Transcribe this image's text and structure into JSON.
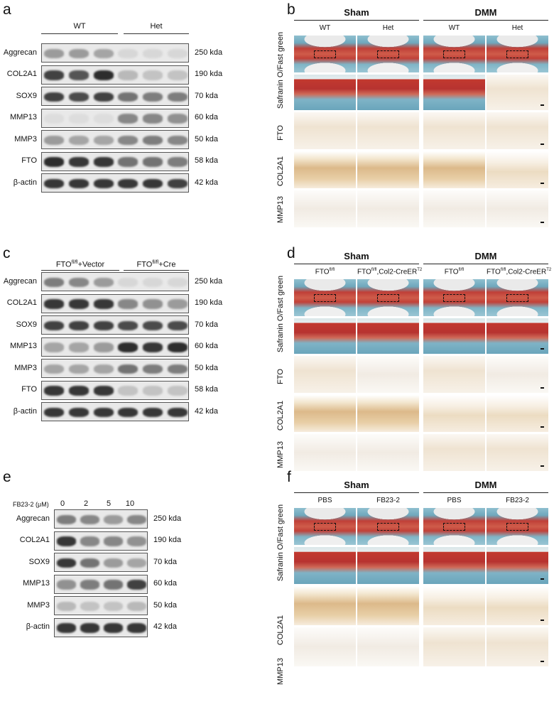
{
  "panels": {
    "a": {
      "label": "a",
      "groups": [
        "WT",
        "Het"
      ],
      "rows": [
        {
          "protein": "Aggrecan",
          "kda": "250 kda"
        },
        {
          "protein": "COL2A1",
          "kda": "190 kda"
        },
        {
          "protein": "SOX9",
          "kda": "70 kda"
        },
        {
          "protein": "MMP13",
          "kda": "60 kda"
        },
        {
          "protein": "MMP3",
          "kda": "50 kda"
        },
        {
          "protein": "FTO",
          "kda": "58 kda"
        },
        {
          "protein": "β-actin",
          "kda": "42 kda"
        }
      ]
    },
    "b": {
      "label": "b",
      "headers": [
        "Sham",
        "DMM"
      ],
      "columns": [
        "WT",
        "Het",
        "WT",
        "Het"
      ],
      "row_labels": [
        "Safranin O/Fast green",
        "FTO",
        "COL2A1",
        "MMP13"
      ]
    },
    "c": {
      "label": "c",
      "groups": [
        {
          "base": "FTO",
          "sup": "fl/fl",
          "rest": "+Vector"
        },
        {
          "base": "FTO",
          "sup": "fl/fl",
          "rest": "+Cre"
        }
      ],
      "rows": [
        {
          "protein": "Aggrecan",
          "kda": "250 kda"
        },
        {
          "protein": "COL2A1",
          "kda": "190 kda"
        },
        {
          "protein": "SOX9",
          "kda": "70 kda"
        },
        {
          "protein": "MMP13",
          "kda": "60 kda"
        },
        {
          "protein": "MMP3",
          "kda": "50 kda"
        },
        {
          "protein": "FTO",
          "kda": "58 kda"
        },
        {
          "protein": "β-actin",
          "kda": "42 kda"
        }
      ]
    },
    "d": {
      "label": "d",
      "headers": [
        "Sham",
        "DMM"
      ],
      "columns": [
        {
          "base": "FTO",
          "sup": "fl/fl",
          "rest": "",
          "sup2": ""
        },
        {
          "base": "FTO",
          "sup": "fl/fl",
          "rest": ",Col2-CreER",
          "sup2": "T2"
        },
        {
          "base": "FTO",
          "sup": "fl/fl",
          "rest": "",
          "sup2": ""
        },
        {
          "base": "FTO",
          "sup": "fl/fl",
          "rest": ",Col2-CreER",
          "sup2": "T2"
        }
      ],
      "row_labels": [
        "Safranin O/Fast green",
        "FTO",
        "COL2A1",
        "MMP13"
      ]
    },
    "e": {
      "label": "e",
      "treatment": "FB23-2 (μM)",
      "doses": [
        "0",
        "2",
        "5",
        "10"
      ],
      "rows": [
        {
          "protein": "Aggrecan",
          "kda": "250 kda"
        },
        {
          "protein": "COL2A1",
          "kda": "190 kda"
        },
        {
          "protein": "SOX9",
          "kda": "70 kda"
        },
        {
          "protein": "MMP13",
          "kda": "60 kda"
        },
        {
          "protein": "MMP3",
          "kda": "50 kda"
        },
        {
          "protein": "β-actin",
          "kda": "42 kda"
        }
      ]
    },
    "f": {
      "label": "f",
      "headers": [
        "Sham",
        "DMM"
      ],
      "columns": [
        "PBS",
        "FB23-2",
        "PBS",
        "FB23-2"
      ],
      "row_labels": [
        "Safranin O/Fast green",
        "COL2A1",
        "MMP13"
      ]
    }
  }
}
